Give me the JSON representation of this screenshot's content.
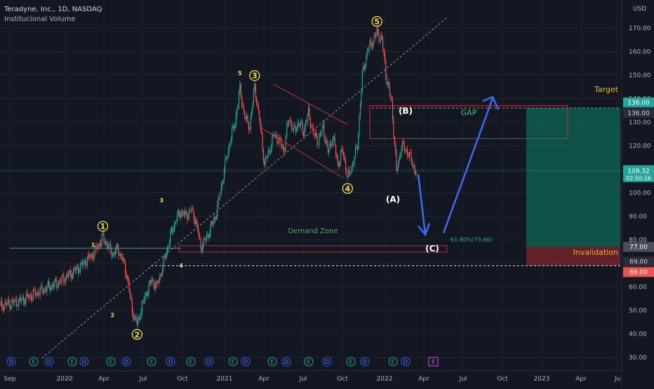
{
  "header": {
    "symbol_line": "Teradyne, Inc., 1D, NASDAQ",
    "indicator": "Institucional Volume",
    "currency": "USD"
  },
  "colors": {
    "background": "#131722",
    "up": "#26a69a",
    "down": "#ef5350",
    "wave_label": "#f5e04a",
    "trendline": "#9598a1",
    "target_fill": "#0f5e4f",
    "invalidation_fill": "#6b2228",
    "arrow": "#3c6df0",
    "channel": "#c2303f",
    "demand_text": "#4caf50",
    "gap_text": "#26c281",
    "label_orange": "#f0b429"
  },
  "chart_data": {
    "type": "candlestick",
    "title": "Teradyne, Inc., 1D, NASDAQ",
    "ylim": [
      25,
      178
    ],
    "y_ticks": [
      30,
      40,
      50,
      60,
      70,
      80,
      90,
      100,
      110,
      120,
      130,
      140,
      150,
      160,
      170
    ],
    "x_ticks": [
      "Sep",
      "2020",
      "Apr",
      "Jul",
      "Oct",
      "2021",
      "Apr",
      "Jul",
      "Oct",
      "2022",
      "Apr",
      "Jul",
      "Oct",
      "2023",
      "Apr",
      "Ju"
    ],
    "price_path": [
      [
        0,
        52
      ],
      [
        4,
        54
      ],
      [
        8,
        58
      ],
      [
        12,
        62
      ],
      [
        16,
        68
      ],
      [
        19,
        74
      ],
      [
        21,
        81
      ],
      [
        23,
        74
      ],
      [
        24,
        76
      ],
      [
        25,
        72
      ],
      [
        26,
        64
      ],
      [
        27,
        50
      ],
      [
        28,
        44
      ],
      [
        29,
        52
      ],
      [
        30,
        58
      ],
      [
        31,
        63
      ],
      [
        32,
        60
      ],
      [
        33,
        67
      ],
      [
        34,
        75
      ],
      [
        35,
        83
      ],
      [
        36,
        89
      ],
      [
        37,
        92
      ],
      [
        38,
        90
      ],
      [
        39,
        93
      ],
      [
        40,
        88
      ],
      [
        41,
        77
      ],
      [
        42,
        80
      ],
      [
        43,
        85
      ],
      [
        44,
        90
      ],
      [
        45,
        100
      ],
      [
        46,
        112
      ],
      [
        47,
        122
      ],
      [
        48,
        130
      ],
      [
        49,
        144
      ],
      [
        50,
        132
      ],
      [
        51,
        128
      ],
      [
        52,
        145
      ],
      [
        53,
        131
      ],
      [
        54,
        112
      ],
      [
        55,
        118
      ],
      [
        56,
        125
      ],
      [
        57,
        122
      ],
      [
        58,
        118
      ],
      [
        59,
        132
      ],
      [
        60,
        126
      ],
      [
        61,
        130
      ],
      [
        62,
        126
      ],
      [
        63,
        134
      ],
      [
        64,
        125
      ],
      [
        65,
        122
      ],
      [
        66,
        128
      ],
      [
        67,
        117
      ],
      [
        68,
        124
      ],
      [
        69,
        112
      ],
      [
        70,
        118
      ],
      [
        71,
        106
      ],
      [
        72,
        112
      ],
      [
        73,
        120
      ],
      [
        74,
        150
      ],
      [
        75,
        160
      ],
      [
        76,
        164
      ],
      [
        77,
        168
      ],
      [
        78,
        165
      ],
      [
        79,
        148
      ],
      [
        80,
        138
      ],
      [
        81,
        109
      ],
      [
        82,
        120
      ],
      [
        83,
        118
      ],
      [
        84,
        114
      ],
      [
        85,
        108
      ]
    ],
    "wave_labels": [
      {
        "label": "1",
        "style": "circle",
        "x": 21,
        "y": 81
      },
      {
        "label": "2",
        "style": "circle",
        "x": 28,
        "y": 44
      },
      {
        "label": "3",
        "style": "circle",
        "x": 52,
        "y": 145
      },
      {
        "label": "4",
        "style": "circle",
        "x": 71,
        "y": 106
      },
      {
        "label": "5",
        "style": "circle",
        "x": 77,
        "y": 168
      },
      {
        "label": "1",
        "style": "small",
        "x": 19,
        "y": 74
      },
      {
        "label": "2",
        "style": "small",
        "x": 23,
        "y": 52
      },
      {
        "label": "3",
        "style": "small",
        "x": 33,
        "y": 93
      },
      {
        "label": "4",
        "style": "small",
        "x": 37,
        "y": 73
      },
      {
        "label": "5",
        "style": "small",
        "x": 49,
        "y": 147
      }
    ],
    "annotations": {
      "target_label": "Target",
      "target_price": "136.00",
      "current_price": "109.32",
      "countdown": "02:50:16",
      "price_tag_77": "77.00",
      "price_tag_69_a": "69.00",
      "price_tag_69_b": "69.00",
      "invalidation_label": "Invalidation",
      "gap_label": "GAP",
      "demand_label": "Demand Zone",
      "fib_label": "61.80%(75.66)",
      "wave_a": "(A)",
      "wave_b": "(B)",
      "wave_c": "(C)"
    },
    "target_level": 136,
    "current_level": 109.32,
    "entry_level": 77,
    "stop_level": 69,
    "gap_zone": [
      123,
      137
    ],
    "demand_zone": [
      74.8,
      77.5
    ],
    "events": [
      "D",
      "E",
      "D",
      "E",
      "D",
      "E",
      "D",
      "E",
      "D",
      "E",
      "D",
      "E",
      "D",
      "E",
      "D",
      "E",
      "D",
      "E",
      "D",
      "E",
      "D",
      "E",
      "D",
      "E",
      "D",
      "E"
    ]
  }
}
